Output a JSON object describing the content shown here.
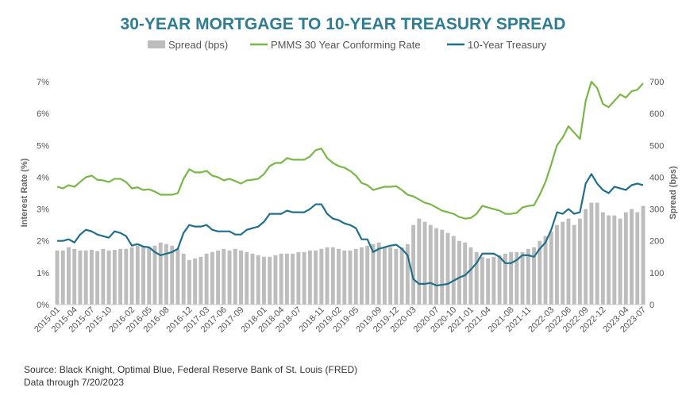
{
  "source_lines": [
    "Source: Black Knight, Optimal Blue, Federal Reserve Bank of St. Louis (FRED)",
    "Data through 7/20/2023"
  ],
  "chart_data": {
    "type": "bar+line",
    "title": "30-YEAR MORTGAGE TO 10-YEAR TREASURY SPREAD",
    "ylabel_left": "Interest Rate (%)",
    "ylabel_right": "Spread (bps)",
    "ylim_left": [
      0,
      7
    ],
    "ylim_right": [
      0,
      700
    ],
    "yticks_left": [
      "0%",
      "1%",
      "2%",
      "3%",
      "4%",
      "5%",
      "6%",
      "7%"
    ],
    "yticks_right": [
      "0",
      "100",
      "200",
      "300",
      "400",
      "500",
      "600",
      "700"
    ],
    "grid": false,
    "legend_placement": "top-center",
    "x_ticks": [
      "2015-01",
      "2015-04",
      "2015-07",
      "2015-10",
      "2016-02",
      "2016-05",
      "2016-08",
      "2016-12",
      "2017-03",
      "2017-06",
      "2017-09",
      "2018-01",
      "2018-04",
      "2018-07",
      "2018-11",
      "2019-02",
      "2019-05",
      "2019-09",
      "2019-12",
      "2020-03",
      "2020-07",
      "2020-10",
      "2021-01",
      "2021-04",
      "2021-08",
      "2021-11",
      "2022-03",
      "2022-06",
      "2022-09",
      "2022-12",
      "2023-04",
      "2023-07"
    ],
    "months": [
      "2015-01",
      "2015-02",
      "2015-03",
      "2015-04",
      "2015-05",
      "2015-06",
      "2015-07",
      "2015-08",
      "2015-09",
      "2015-10",
      "2015-11",
      "2015-12",
      "2016-01",
      "2016-02",
      "2016-03",
      "2016-04",
      "2016-05",
      "2016-06",
      "2016-07",
      "2016-08",
      "2016-09",
      "2016-10",
      "2016-11",
      "2016-12",
      "2017-01",
      "2017-02",
      "2017-03",
      "2017-04",
      "2017-05",
      "2017-06",
      "2017-07",
      "2017-08",
      "2017-09",
      "2017-10",
      "2017-11",
      "2017-12",
      "2018-01",
      "2018-02",
      "2018-03",
      "2018-04",
      "2018-05",
      "2018-06",
      "2018-07",
      "2018-08",
      "2018-09",
      "2018-10",
      "2018-11",
      "2018-12",
      "2019-01",
      "2019-02",
      "2019-03",
      "2019-04",
      "2019-05",
      "2019-06",
      "2019-07",
      "2019-08",
      "2019-09",
      "2019-10",
      "2019-11",
      "2019-12",
      "2020-01",
      "2020-02",
      "2020-03",
      "2020-04",
      "2020-05",
      "2020-06",
      "2020-07",
      "2020-08",
      "2020-09",
      "2020-10",
      "2020-11",
      "2020-12",
      "2021-01",
      "2021-02",
      "2021-03",
      "2021-04",
      "2021-05",
      "2021-06",
      "2021-07",
      "2021-08",
      "2021-09",
      "2021-10",
      "2021-11",
      "2021-12",
      "2022-01",
      "2022-02",
      "2022-03",
      "2022-04",
      "2022-05",
      "2022-06",
      "2022-07",
      "2022-08",
      "2022-09",
      "2022-10",
      "2022-11",
      "2022-12",
      "2023-01",
      "2023-02",
      "2023-03",
      "2023-04",
      "2023-05",
      "2023-06",
      "2023-07"
    ],
    "series": [
      {
        "name": "Spread (bps)",
        "kind": "bar",
        "color": "#bdbdbd",
        "axis": "right",
        "values": [
          170,
          170,
          180,
          175,
          170,
          170,
          172,
          168,
          175,
          170,
          172,
          175,
          175,
          180,
          185,
          180,
          180,
          185,
          195,
          190,
          185,
          175,
          160,
          140,
          145,
          150,
          160,
          165,
          170,
          175,
          170,
          175,
          170,
          165,
          160,
          155,
          150,
          150,
          155,
          160,
          160,
          160,
          165,
          165,
          170,
          170,
          175,
          180,
          180,
          175,
          170,
          170,
          175,
          180,
          185,
          190,
          195,
          180,
          180,
          175,
          180,
          190,
          250,
          270,
          260,
          250,
          240,
          235,
          225,
          215,
          200,
          195,
          180,
          165,
          150,
          145,
          150,
          155,
          160,
          165,
          165,
          165,
          175,
          180,
          200,
          215,
          230,
          250,
          260,
          270,
          250,
          270,
          300,
          320,
          320,
          290,
          280,
          280,
          270,
          290,
          300,
          290,
          310
        ]
      },
      {
        "name": "PMMS 30 Year Conforming Rate",
        "kind": "line",
        "color": "#7ab648",
        "axis": "left",
        "values": [
          3.7,
          3.65,
          3.75,
          3.7,
          3.85,
          4.0,
          4.05,
          3.92,
          3.9,
          3.85,
          3.95,
          3.95,
          3.85,
          3.65,
          3.68,
          3.6,
          3.62,
          3.55,
          3.45,
          3.45,
          3.45,
          3.5,
          3.95,
          4.25,
          4.15,
          4.15,
          4.2,
          4.05,
          4.0,
          3.9,
          3.95,
          3.88,
          3.8,
          3.9,
          3.92,
          3.95,
          4.1,
          4.35,
          4.45,
          4.45,
          4.6,
          4.55,
          4.55,
          4.55,
          4.65,
          4.85,
          4.9,
          4.6,
          4.45,
          4.35,
          4.3,
          4.2,
          4.05,
          3.82,
          3.75,
          3.6,
          3.65,
          3.7,
          3.7,
          3.72,
          3.6,
          3.45,
          3.4,
          3.3,
          3.2,
          3.15,
          3.05,
          2.95,
          2.9,
          2.85,
          2.75,
          2.7,
          2.72,
          2.85,
          3.1,
          3.05,
          3.0,
          2.95,
          2.85,
          2.85,
          2.88,
          3.05,
          3.1,
          3.12,
          3.45,
          3.85,
          4.4,
          5.0,
          5.25,
          5.6,
          5.4,
          5.2,
          6.4,
          7.0,
          6.8,
          6.3,
          6.2,
          6.4,
          6.6,
          6.5,
          6.7,
          6.75,
          6.95
        ]
      },
      {
        "name": "10-Year Treasury",
        "kind": "line",
        "color": "#1f6f8b",
        "axis": "left",
        "values": [
          2.0,
          2.0,
          2.05,
          1.95,
          2.2,
          2.35,
          2.3,
          2.2,
          2.15,
          2.1,
          2.3,
          2.25,
          2.15,
          1.85,
          1.9,
          1.82,
          1.8,
          1.65,
          1.55,
          1.6,
          1.65,
          1.75,
          2.25,
          2.5,
          2.45,
          2.45,
          2.5,
          2.35,
          2.3,
          2.3,
          2.3,
          2.2,
          2.2,
          2.35,
          2.4,
          2.45,
          2.6,
          2.85,
          2.85,
          2.85,
          2.95,
          2.9,
          2.9,
          2.9,
          3.0,
          3.15,
          3.15,
          2.85,
          2.7,
          2.65,
          2.55,
          2.5,
          2.4,
          2.05,
          2.05,
          1.65,
          1.75,
          1.8,
          1.85,
          1.88,
          1.75,
          1.55,
          0.8,
          0.65,
          0.65,
          0.68,
          0.6,
          0.62,
          0.65,
          0.75,
          0.85,
          0.92,
          1.1,
          1.3,
          1.6,
          1.6,
          1.6,
          1.5,
          1.3,
          1.3,
          1.4,
          1.55,
          1.55,
          1.5,
          1.75,
          1.95,
          2.35,
          2.9,
          2.85,
          3.0,
          2.85,
          2.9,
          3.8,
          4.1,
          3.8,
          3.6,
          3.5,
          3.7,
          3.65,
          3.6,
          3.75,
          3.8,
          3.75
        ]
      }
    ]
  }
}
